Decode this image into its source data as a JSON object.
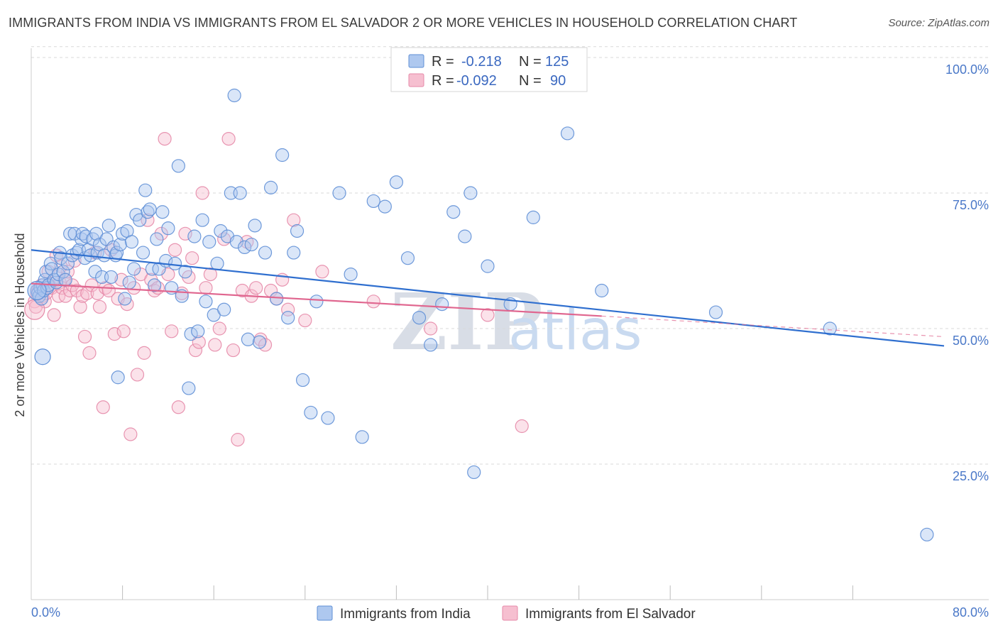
{
  "title": "IMMIGRANTS FROM INDIA VS IMMIGRANTS FROM EL SALVADOR 2 OR MORE VEHICLES IN HOUSEHOLD CORRELATION CHART",
  "source": "Source: ZipAtlas.com",
  "watermark": {
    "zip": "ZIP",
    "atlas": "atlas"
  },
  "legend": {
    "r_label": "R =",
    "n_label": "N =",
    "india": {
      "r": "-0.218",
      "n": "125"
    },
    "el_salvador": {
      "r": "-0.092",
      "n": "90"
    }
  },
  "colors": {
    "india_fill": "#aec8ef",
    "india_stroke": "#5f8fd6",
    "india_line": "#2f6fcf",
    "elsal_fill": "#f6bfd0",
    "elsal_stroke": "#e58aa8",
    "elsal_line": "#e0668f",
    "grid": "#d9d9d9",
    "tick_text": "#4a78c8"
  },
  "chart_data": {
    "type": "scatter",
    "title": "IMMIGRANTS FROM INDIA VS IMMIGRANTS FROM EL SALVADOR 2 OR MORE VEHICLES IN HOUSEHOLD CORRELATION CHART",
    "xlabel": "",
    "ylabel": "2 or more Vehicles in Household",
    "x_ticks": [
      "0.0%",
      "80.0%"
    ],
    "y_ticks": [
      "25.0%",
      "50.0%",
      "75.0%",
      "100.0%"
    ],
    "xlim": [
      0,
      80
    ],
    "ylim": [
      0,
      104
    ],
    "grid": true,
    "legend_position": "top-center",
    "series": [
      {
        "name": "Immigrants from India",
        "trend": {
          "x0": 0,
          "y0": 64.5,
          "x1": 80,
          "y1": 46.8
        },
        "points": [
          [
            0.5,
            57
          ],
          [
            0.6,
            56.5
          ],
          [
            0.7,
            56
          ],
          [
            0.8,
            57.5
          ],
          [
            0.9,
            55.5
          ],
          [
            1,
            58
          ],
          [
            1.1,
            57
          ],
          [
            1.2,
            59
          ],
          [
            1.3,
            60.5
          ],
          [
            1.4,
            57.5
          ],
          [
            1.5,
            58
          ],
          [
            1.7,
            62
          ],
          [
            1.8,
            61
          ],
          [
            2,
            59
          ],
          [
            2.2,
            58.5
          ],
          [
            2.4,
            60
          ],
          [
            2.5,
            64
          ],
          [
            2.6,
            63
          ],
          [
            2.8,
            60.5
          ],
          [
            3,
            59
          ],
          [
            3.2,
            62
          ],
          [
            3.4,
            67.5
          ],
          [
            3.6,
            63.5
          ],
          [
            3.8,
            67.5
          ],
          [
            4,
            64
          ],
          [
            4.2,
            64.5
          ],
          [
            4.4,
            66.5
          ],
          [
            4.5,
            67.5
          ],
          [
            4.7,
            63
          ],
          [
            4.8,
            67
          ],
          [
            5,
            64.5
          ],
          [
            5.2,
            63.5
          ],
          [
            5.4,
            66.5
          ],
          [
            5.6,
            60.5
          ],
          [
            5.7,
            67.5
          ],
          [
            5.8,
            64
          ],
          [
            6,
            65.5
          ],
          [
            6.2,
            59.5
          ],
          [
            6.4,
            63.5
          ],
          [
            6.6,
            66.5
          ],
          [
            6.8,
            69
          ],
          [
            7,
            59.5
          ],
          [
            7.2,
            65
          ],
          [
            7.4,
            63.5
          ],
          [
            7.5,
            64
          ],
          [
            7.6,
            41
          ],
          [
            7.8,
            65.5
          ],
          [
            8,
            67.5
          ],
          [
            8.2,
            55.5
          ],
          [
            8.4,
            68
          ],
          [
            8.6,
            58.5
          ],
          [
            8.8,
            66
          ],
          [
            9,
            61
          ],
          [
            9.2,
            71
          ],
          [
            9.5,
            70
          ],
          [
            9.8,
            64
          ],
          [
            10,
            75.5
          ],
          [
            10.2,
            71.5
          ],
          [
            10.4,
            72
          ],
          [
            10.6,
            61
          ],
          [
            10.8,
            58
          ],
          [
            11,
            66.5
          ],
          [
            11.2,
            61
          ],
          [
            11.5,
            71.5
          ],
          [
            11.8,
            62.5
          ],
          [
            12,
            68.5
          ],
          [
            12.3,
            57.5
          ],
          [
            12.6,
            62
          ],
          [
            12.9,
            80
          ],
          [
            13.2,
            56
          ],
          [
            13.5,
            60.5
          ],
          [
            13.8,
            39
          ],
          [
            14,
            49
          ],
          [
            14.3,
            67
          ],
          [
            14.6,
            49.5
          ],
          [
            15,
            70
          ],
          [
            15.3,
            55
          ],
          [
            15.6,
            66
          ],
          [
            16,
            52.5
          ],
          [
            16.3,
            62
          ],
          [
            16.6,
            68
          ],
          [
            16.9,
            53.5
          ],
          [
            17.2,
            67
          ],
          [
            17.5,
            75
          ],
          [
            17.8,
            93
          ],
          [
            18,
            66
          ],
          [
            18.3,
            75
          ],
          [
            18.7,
            65
          ],
          [
            19,
            48
          ],
          [
            19.3,
            65.5
          ],
          [
            19.6,
            69
          ],
          [
            20,
            47.5
          ],
          [
            20.5,
            64
          ],
          [
            21,
            76
          ],
          [
            21.5,
            55.5
          ],
          [
            22,
            82
          ],
          [
            22.5,
            52
          ],
          [
            23,
            64
          ],
          [
            23.3,
            68
          ],
          [
            23.8,
            40.5
          ],
          [
            25,
            55
          ],
          [
            26,
            33.5
          ],
          [
            27,
            75
          ],
          [
            28,
            60
          ],
          [
            29,
            30
          ],
          [
            30,
            73.5
          ],
          [
            31,
            72.5
          ],
          [
            32,
            77
          ],
          [
            33,
            63
          ],
          [
            34,
            52
          ],
          [
            35,
            47
          ],
          [
            36,
            54.5
          ],
          [
            37,
            71.5
          ],
          [
            38,
            67
          ],
          [
            38.5,
            75
          ],
          [
            38.8,
            23.5
          ],
          [
            40,
            61.5
          ],
          [
            42,
            54.5
          ],
          [
            44,
            70.5
          ],
          [
            47,
            86
          ],
          [
            50,
            57
          ],
          [
            60,
            53
          ],
          [
            70,
            50
          ],
          [
            78.5,
            12
          ],
          [
            24.5,
            34.5
          ]
        ]
      },
      {
        "name": "Immigrants from El Salvador",
        "trend": {
          "x0": 0,
          "y0": 58.3,
          "x1": 50,
          "y1": 52.3
        },
        "trend_dashed": {
          "x0": 50,
          "y0": 52.3,
          "x1": 80,
          "y1": 48.5
        },
        "points": [
          [
            0.3,
            55
          ],
          [
            0.4,
            54
          ],
          [
            0.5,
            56.5
          ],
          [
            0.6,
            57
          ],
          [
            0.8,
            57.5
          ],
          [
            0.9,
            58
          ],
          [
            1,
            56
          ],
          [
            1.2,
            55
          ],
          [
            1.3,
            56.5
          ],
          [
            1.5,
            60.5
          ],
          [
            1.6,
            58
          ],
          [
            1.8,
            57.5
          ],
          [
            2,
            52.5
          ],
          [
            2.2,
            63.5
          ],
          [
            2.4,
            56
          ],
          [
            2.5,
            58.5
          ],
          [
            2.7,
            57.5
          ],
          [
            2.9,
            59
          ],
          [
            3,
            56
          ],
          [
            3.2,
            60.5
          ],
          [
            3.4,
            57
          ],
          [
            3.6,
            58
          ],
          [
            3.8,
            62.5
          ],
          [
            4,
            57
          ],
          [
            4.3,
            54
          ],
          [
            4.5,
            56
          ],
          [
            4.7,
            48.5
          ],
          [
            4.9,
            56.5
          ],
          [
            5.1,
            45.5
          ],
          [
            5.3,
            58
          ],
          [
            5.6,
            64
          ],
          [
            5.8,
            56.5
          ],
          [
            6,
            54
          ],
          [
            6.3,
            35.5
          ],
          [
            6.5,
            57.5
          ],
          [
            6.8,
            57
          ],
          [
            7,
            64.5
          ],
          [
            7.3,
            49
          ],
          [
            7.6,
            55.5
          ],
          [
            7.9,
            59
          ],
          [
            8.1,
            49.5
          ],
          [
            8.4,
            54.5
          ],
          [
            8.7,
            30.5
          ],
          [
            9,
            57.5
          ],
          [
            9.3,
            41.5
          ],
          [
            9.6,
            60
          ],
          [
            9.9,
            45.5
          ],
          [
            10.2,
            70
          ],
          [
            10.5,
            59
          ],
          [
            10.8,
            57
          ],
          [
            11.1,
            57.5
          ],
          [
            11.4,
            67.5
          ],
          [
            11.7,
            85
          ],
          [
            12,
            60
          ],
          [
            12.3,
            49.5
          ],
          [
            12.6,
            64.5
          ],
          [
            12.9,
            35.5
          ],
          [
            13.2,
            56.5
          ],
          [
            13.5,
            67.5
          ],
          [
            13.8,
            59.5
          ],
          [
            14.1,
            63
          ],
          [
            14.4,
            46
          ],
          [
            14.7,
            47.5
          ],
          [
            15,
            75
          ],
          [
            15.3,
            57.5
          ],
          [
            15.7,
            60
          ],
          [
            16.1,
            47
          ],
          [
            16.5,
            50
          ],
          [
            16.9,
            66.5
          ],
          [
            17.3,
            85
          ],
          [
            17.7,
            46
          ],
          [
            18.1,
            29.5
          ],
          [
            18.5,
            57
          ],
          [
            18.9,
            66
          ],
          [
            19.3,
            56
          ],
          [
            19.7,
            57.5
          ],
          [
            20.1,
            48
          ],
          [
            20.5,
            47
          ],
          [
            21,
            57
          ],
          [
            21.5,
            55.5
          ],
          [
            22,
            59
          ],
          [
            22.5,
            53.5
          ],
          [
            23,
            70
          ],
          [
            24,
            51.5
          ],
          [
            25.5,
            60.5
          ],
          [
            30,
            55
          ],
          [
            35,
            50
          ],
          [
            40,
            52.5
          ],
          [
            43,
            32
          ],
          [
            2.6,
            61.5
          ]
        ]
      }
    ]
  },
  "bottom_legend": {
    "india": "Immigrants from India",
    "el_salvador": "Immigrants from El Salvador"
  }
}
